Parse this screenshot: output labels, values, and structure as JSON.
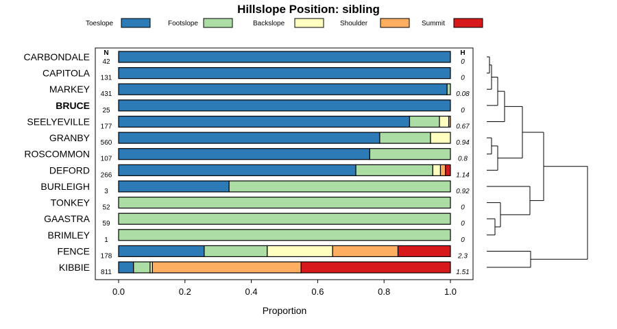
{
  "chart_data": {
    "type": "bar",
    "orientation": "horizontal-stacked",
    "title": "Hillslope Position: sibling",
    "xlabel": "Proportion",
    "ylabel": "",
    "xlim": [
      0,
      1
    ],
    "xticks": [
      0.0,
      0.2,
      0.4,
      0.6,
      0.8,
      1.0
    ],
    "xtick_labels": [
      "0.0",
      "0.2",
      "0.4",
      "0.6",
      "0.8",
      "1.0"
    ],
    "n_header": "N",
    "h_header": "H",
    "legend": [
      {
        "name": "Toeslope",
        "color": "#2c7bb6"
      },
      {
        "name": "Footslope",
        "color": "#abdda4"
      },
      {
        "name": "Backslope",
        "color": "#ffffbf"
      },
      {
        "name": "Shoulder",
        "color": "#fdae61"
      },
      {
        "name": "Summit",
        "color": "#d7191c"
      }
    ],
    "rows": [
      {
        "label": "CARBONDALE",
        "n": "42",
        "h": "0",
        "bold": false,
        "values": [
          1.0,
          0,
          0,
          0,
          0
        ]
      },
      {
        "label": "CAPITOLA",
        "n": "131",
        "h": "0",
        "bold": false,
        "values": [
          1.0,
          0,
          0,
          0,
          0
        ]
      },
      {
        "label": "MARKEY",
        "n": "431",
        "h": "0.08",
        "bold": false,
        "values": [
          0.99,
          0.01,
          0,
          0,
          0
        ]
      },
      {
        "label": "BRUCE",
        "n": "25",
        "h": "0",
        "bold": true,
        "values": [
          1.0,
          0,
          0,
          0,
          0
        ]
      },
      {
        "label": "SEELYEVILLE",
        "n": "177",
        "h": "0.67",
        "bold": false,
        "values": [
          0.877,
          0.09,
          0.028,
          0.005,
          0
        ]
      },
      {
        "label": "GRANBY",
        "n": "560",
        "h": "0.94",
        "bold": false,
        "values": [
          0.787,
          0.153,
          0.06,
          0,
          0
        ]
      },
      {
        "label": "ROSCOMMON",
        "n": "107",
        "h": "0.8",
        "bold": false,
        "values": [
          0.757,
          0.243,
          0,
          0,
          0
        ]
      },
      {
        "label": "DEFORD",
        "n": "266",
        "h": "1.14",
        "bold": false,
        "values": [
          0.715,
          0.232,
          0.023,
          0.015,
          0.015
        ]
      },
      {
        "label": "BURLEIGH",
        "n": "3",
        "h": "0.92",
        "bold": false,
        "values": [
          0.333,
          0.667,
          0,
          0,
          0
        ]
      },
      {
        "label": "TONKEY",
        "n": "52",
        "h": "0",
        "bold": false,
        "values": [
          0,
          1.0,
          0,
          0,
          0
        ]
      },
      {
        "label": "GAASTRA",
        "n": "59",
        "h": "0",
        "bold": false,
        "values": [
          0,
          1.0,
          0,
          0,
          0
        ]
      },
      {
        "label": "BRIMLEY",
        "n": "1",
        "h": "0",
        "bold": false,
        "values": [
          0,
          1.0,
          0,
          0,
          0
        ]
      },
      {
        "label": "FENCE",
        "n": "178",
        "h": "2.3",
        "bold": false,
        "values": [
          0.258,
          0.19,
          0.197,
          0.197,
          0.158
        ]
      },
      {
        "label": "KIBBIE",
        "n": "811",
        "h": "1.51",
        "bold": false,
        "values": [
          0.045,
          0.05,
          0.007,
          0.448,
          0.45
        ]
      }
    ]
  }
}
